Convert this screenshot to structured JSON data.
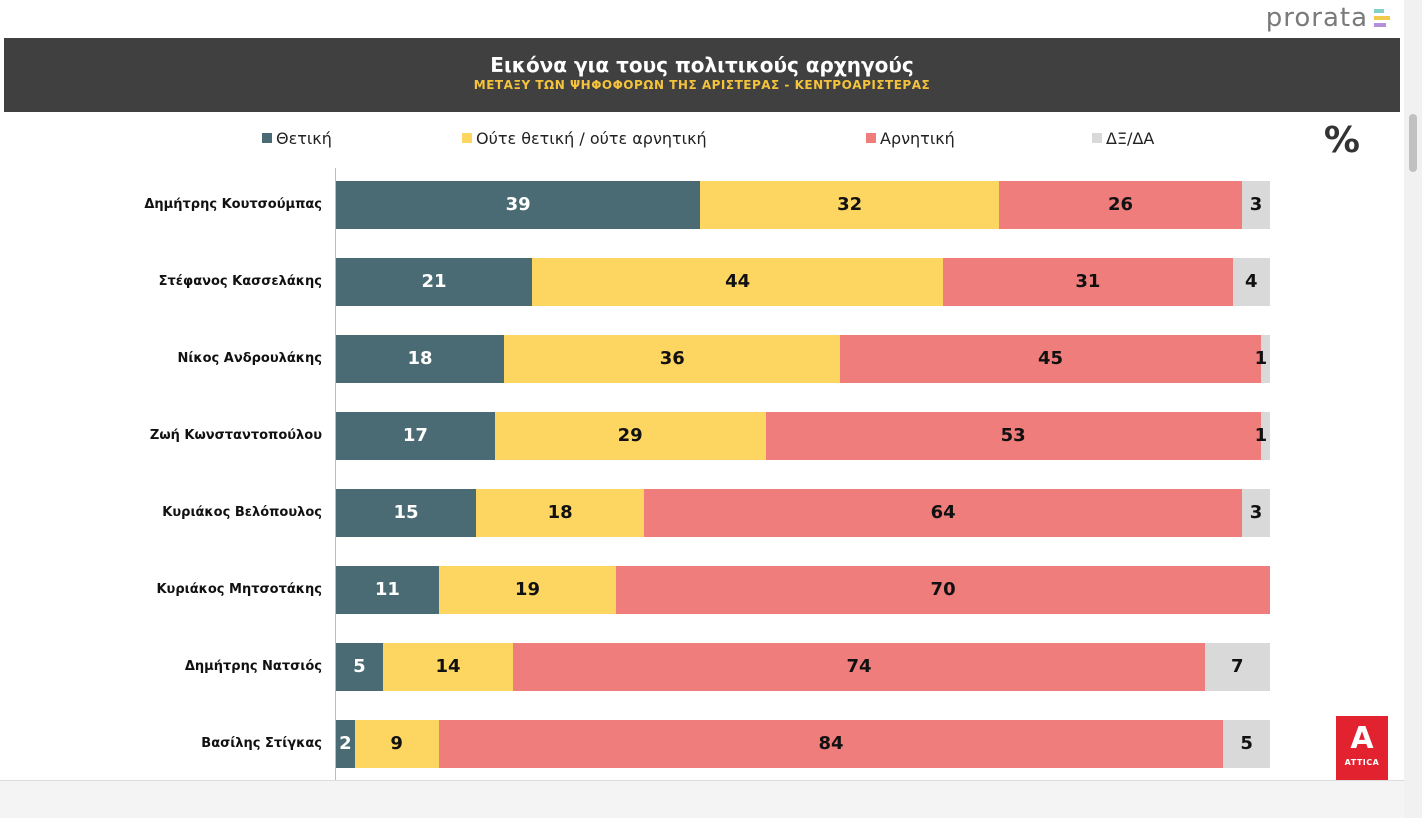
{
  "brand": {
    "name": "prorata"
  },
  "header": {
    "title": "Εικόνα για τους πολιτικούς αρχηγούς",
    "subtitle": "ΜΕΤΑΞΥ ΤΩΝ ΨΗΦΟΦΟΡΩΝ ΤΗΣ ΑΡΙΣΤΕΡΑΣ - ΚΕΝΤΡΟΑΡΙΣΤΕΡΑΣ"
  },
  "unit_label": "%",
  "logo": {
    "letter": "A",
    "text": "ATTICA"
  },
  "colors": {
    "positive": "#4a6b73",
    "neutral": "#fdd561",
    "negative": "#ee7d7b",
    "dk": "#d9d9d9",
    "title_bg": "#404040",
    "subtitle": "#f5c33b",
    "attica": "#e2222f"
  },
  "chart_data": {
    "type": "bar",
    "orientation": "horizontal",
    "stacked": true,
    "title": "Εικόνα για τους πολιτικούς αρχηγούς",
    "subtitle": "ΜΕΤΑΞΥ ΤΩΝ ΨΗΦΟΦΟΡΩΝ ΤΗΣ ΑΡΙΣΤΕΡΑΣ - ΚΕΝΤΡΟΑΡΙΣΤΕΡΑΣ",
    "unit": "%",
    "legend_position": "top",
    "categories": [
      "Δημήτρης Κουτσούμπας",
      "Στέφανος Κασσελάκης",
      "Νίκος Ανδρουλάκης",
      "Ζωή Κωνσταντοπούλου",
      "Κυριάκος Βελόπουλος",
      "Κυριάκος Μητσοτάκης",
      "Δημήτρης Νατσιός",
      "Βασίλης Στίγκας"
    ],
    "series": [
      {
        "name": "Θετική",
        "values": [
          39,
          21,
          18,
          17,
          15,
          11,
          5,
          2
        ]
      },
      {
        "name": "Ούτε θετική / ούτε αρνητική",
        "values": [
          32,
          44,
          36,
          29,
          18,
          19,
          14,
          9
        ]
      },
      {
        "name": "Αρνητική",
        "values": [
          26,
          31,
          45,
          53,
          64,
          70,
          74,
          84
        ]
      },
      {
        "name": "ΔΞ/ΔΑ",
        "values": [
          3,
          4,
          1,
          1,
          3,
          0,
          7,
          5
        ]
      }
    ]
  }
}
